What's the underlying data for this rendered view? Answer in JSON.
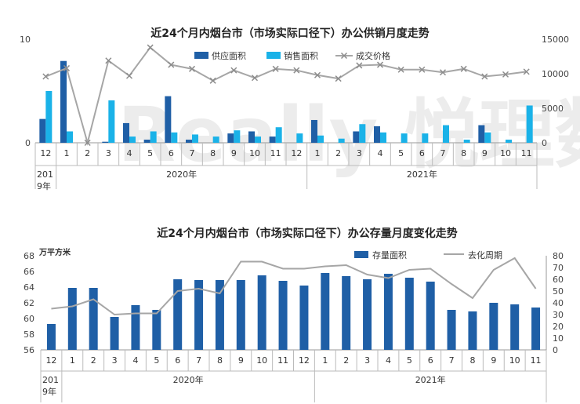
{
  "months": [
    "12",
    "1",
    "2",
    "3",
    "4",
    "5",
    "6",
    "7",
    "8",
    "9",
    "10",
    "11",
    "12",
    "1",
    "2",
    "3",
    "4",
    "5",
    "6",
    "7",
    "8",
    "9",
    "10",
    "11"
  ],
  "year_labels": [
    "201\n9年",
    "2020年",
    "2021年"
  ],
  "watermark": "Really 悦理数据",
  "chart_data": [
    {
      "type": "bar+line",
      "title": "近24个月内烟台市（市场实际口径下）办公供销月度走势",
      "left_ylim": [
        0,
        10
      ],
      "left_ticks": [
        "0",
        "10"
      ],
      "right_ylim": [
        0,
        15000
      ],
      "right_ticks": [
        "0",
        "5000",
        "10000",
        "15000"
      ],
      "colors": {
        "supply": "#1f5fa6",
        "sales": "#1ab2e8",
        "price": "#a6a6a6"
      },
      "series": [
        {
          "name": "供应面积",
          "axis": "left",
          "values": [
            2.3,
            7.9,
            0,
            0.1,
            1.9,
            0.3,
            4.5,
            0.3,
            0,
            0.9,
            1.1,
            0.6,
            0,
            2.2,
            0,
            1.1,
            1.6,
            0,
            0,
            0,
            0,
            1.7,
            0,
            0
          ]
        },
        {
          "name": "销售面积",
          "axis": "left",
          "values": [
            5.0,
            1.1,
            0,
            4.1,
            0.6,
            1.1,
            1.0,
            0.8,
            0.6,
            1.2,
            0.6,
            1.5,
            0.9,
            0.7,
            0.4,
            1.8,
            1.0,
            0.9,
            0.9,
            1.7,
            0.3,
            1.0,
            0.3,
            3.6
          ]
        },
        {
          "name": "成交价格",
          "axis": "right",
          "values": [
            9600,
            10800,
            0,
            11900,
            9700,
            13800,
            11300,
            10700,
            9000,
            10500,
            9400,
            10700,
            10500,
            9800,
            9300,
            11200,
            11300,
            10600,
            10600,
            10200,
            10700,
            9600,
            9900,
            10300
          ]
        }
      ]
    },
    {
      "type": "bar+line",
      "title": "近24个月内烟台市（市场实际口径下）办公存量月度变化走势",
      "unit_label": "万平方米",
      "left_ylim": [
        56,
        68
      ],
      "left_ticks": [
        "56",
        "58",
        "60",
        "62",
        "64",
        "66",
        "68"
      ],
      "right_ylim": [
        0,
        80
      ],
      "right_ticks": [
        "0",
        "10",
        "20",
        "30",
        "40",
        "50",
        "60",
        "70",
        "80"
      ],
      "colors": {
        "stock": "#1f5fa6",
        "cycle": "#a6a6a6"
      },
      "series": [
        {
          "name": "存量面积",
          "axis": "left",
          "values": [
            59.3,
            63.9,
            63.9,
            60.2,
            61.7,
            61.1,
            65.0,
            64.9,
            64.9,
            64.9,
            65.5,
            64.8,
            64.2,
            65.8,
            65.4,
            65.0,
            65.7,
            65.2,
            64.7,
            61.1,
            60.9,
            62.0,
            61.8,
            61.4
          ]
        },
        {
          "name": "去化周期",
          "axis": "right",
          "values": [
            35,
            37,
            43,
            30,
            31,
            31,
            50,
            52,
            48,
            75,
            75,
            69,
            69,
            71,
            72,
            64,
            61,
            68,
            69,
            56,
            44,
            68,
            78,
            52
          ]
        }
      ]
    }
  ]
}
